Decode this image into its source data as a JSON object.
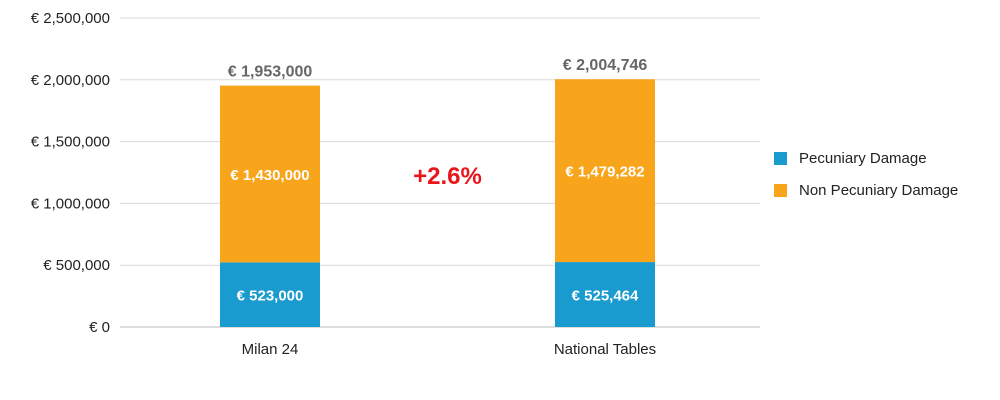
{
  "chart_data": {
    "type": "bar",
    "stacked": true,
    "categories": [
      "Milan 24",
      "National Tables"
    ],
    "series": [
      {
        "name": "Pecuniary Damage",
        "values": [
          523000,
          525464
        ],
        "labels": [
          "€ 523,000",
          "€ 525,464"
        ],
        "color": "#1a9bcf"
      },
      {
        "name": "Non Pecuniary Damage",
        "values": [
          1430000,
          1479282
        ],
        "labels": [
          "€ 1,430,000",
          "€ 1,479,282"
        ],
        "color": "#f9a51b"
      }
    ],
    "totals": [
      1953000,
      2004746
    ],
    "total_labels": [
      "€ 1,953,000",
      "€ 2,004,746"
    ],
    "ylim": [
      0,
      2500000
    ],
    "yticks": [
      0,
      500000,
      1000000,
      1500000,
      2000000,
      2500000
    ],
    "ytick_labels": [
      "€ 0",
      "€ 500,000",
      "€ 1,000,000",
      "€ 1,500,000",
      "€ 2,000,000",
      "€ 2,500,000"
    ],
    "grid": true,
    "legend_position": "right",
    "annotation": {
      "text": "+2.6%",
      "color": "#e8151b"
    }
  }
}
